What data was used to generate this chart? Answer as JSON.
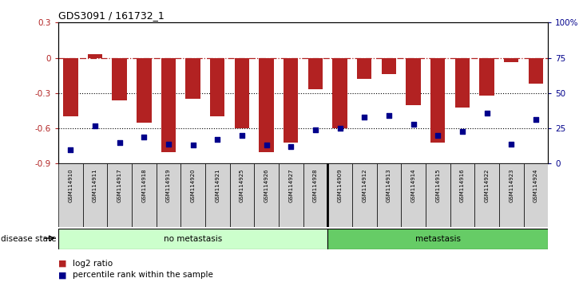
{
  "title": "GDS3091 / 161732_1",
  "samples": [
    "GSM114910",
    "GSM114911",
    "GSM114917",
    "GSM114918",
    "GSM114919",
    "GSM114920",
    "GSM114921",
    "GSM114925",
    "GSM114926",
    "GSM114927",
    "GSM114928",
    "GSM114909",
    "GSM114912",
    "GSM114913",
    "GSM114914",
    "GSM114915",
    "GSM114916",
    "GSM114922",
    "GSM114923",
    "GSM114924"
  ],
  "log2_ratio": [
    -0.5,
    0.03,
    -0.36,
    -0.55,
    -0.8,
    -0.35,
    -0.5,
    -0.6,
    -0.8,
    -0.72,
    -0.27,
    -0.6,
    -0.18,
    -0.14,
    -0.4,
    -0.72,
    -0.42,
    -0.32,
    -0.04,
    -0.22
  ],
  "percentile": [
    10,
    27,
    15,
    19,
    14,
    13,
    17,
    20,
    13,
    12,
    24,
    25,
    33,
    34,
    28,
    20,
    23,
    36,
    14,
    31
  ],
  "no_metastasis_count": 11,
  "metastasis_count": 9,
  "bar_color": "#b22222",
  "dot_color": "#00008b",
  "bg_color": "#ffffff",
  "ylim_left": [
    -0.9,
    0.3
  ],
  "ylim_right": [
    0,
    100
  ],
  "dotted_lines": [
    -0.3,
    -0.6
  ],
  "no_meta_color": "#ccffcc",
  "meta_color": "#66cc66",
  "label_bg": "#d3d3d3",
  "legend_labels": [
    "log2 ratio",
    "percentile rank within the sample"
  ]
}
